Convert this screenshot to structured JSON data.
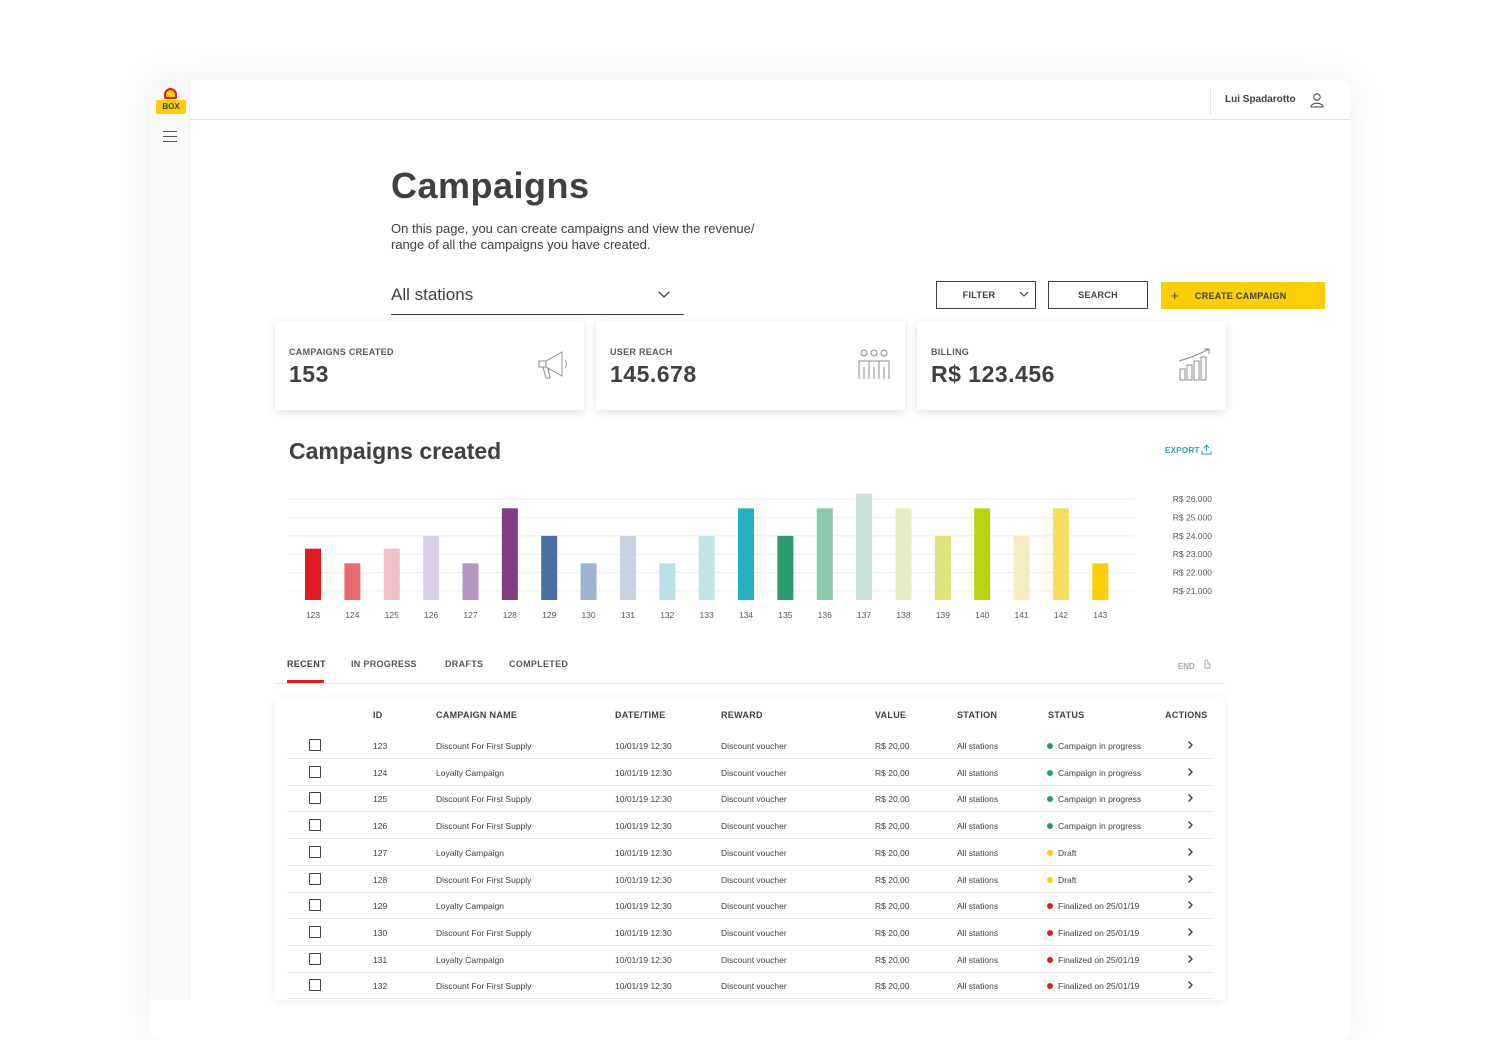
{
  "app": {
    "logo_text": "BOX"
  },
  "header": {
    "user_name": "Lui Spadarotto"
  },
  "page": {
    "title": "Campaigns",
    "description": "On this page, you can create campaigns and view the revenue/ range of all the campaigns you have created."
  },
  "controls": {
    "station_select": "All stations",
    "filter_label": "FILTER",
    "search_label": "SEARCH",
    "create_label": "CREATE CAMPAIGN",
    "create_plus": "+"
  },
  "cards": [
    {
      "title": "CAMPAIGNS CREATED",
      "value": "153",
      "icon": "megaphone-icon"
    },
    {
      "title": "USER REACH",
      "value": "145.678",
      "icon": "users-icon"
    },
    {
      "title": "BILLING",
      "value": "R$ 123.456",
      "icon": "growth-chart-icon"
    }
  ],
  "chart_section": {
    "title": "Campaigns created",
    "export_label": "EXPORT"
  },
  "chart_data": {
    "type": "bar",
    "categories": [
      "123",
      "124",
      "125",
      "126",
      "127",
      "128",
      "129",
      "130",
      "131",
      "132",
      "133",
      "134",
      "135",
      "136",
      "137",
      "138",
      "139",
      "140",
      "141",
      "142",
      "143"
    ],
    "values": [
      23300,
      22500,
      23300,
      24000,
      22500,
      25500,
      24000,
      22500,
      24000,
      22500,
      24000,
      25500,
      24000,
      25500,
      26300,
      25500,
      24000,
      25500,
      24000,
      25500,
      22500
    ],
    "colors": [
      "#dd1d21",
      "#e66a71",
      "#f0c1c6",
      "#ddd0e6",
      "#b795c4",
      "#7f3e7d",
      "#4a6fa2",
      "#9fb3d1",
      "#c8d3e0",
      "#b9e1e6",
      "#c2e4e8",
      "#27b0c0",
      "#2b9b6e",
      "#8cc9a9",
      "#c8e2d6",
      "#e8ecc5",
      "#dde27b",
      "#bcd10f",
      "#f5ebc3",
      "#f3de5e",
      "#fbce07"
    ],
    "ylim": [
      20500,
      26500
    ],
    "y_ticks": [
      "R$ 26.000",
      "R$ 25.000",
      "R$ 24.000",
      "R$ 23.000",
      "R$ 22.000",
      "R$ 21.000"
    ],
    "y_tick_values": [
      26000,
      25000,
      24000,
      23000,
      22000,
      21000
    ],
    "grid": true
  },
  "tabs": [
    "RECENT",
    "IN PROGRESS",
    "DRAFTS",
    "COMPLETED"
  ],
  "end_label": "END",
  "table": {
    "headers": [
      "ID",
      "CAMPAIGN NAME",
      "DATE/TIME",
      "REWARD",
      "VALUE",
      "STATION",
      "STATUS",
      "ACTIONS"
    ],
    "rows": [
      {
        "id": "123",
        "name": "Discount For First Supply",
        "date": "10/01/19 12:30",
        "reward": "Discount voucher",
        "value": "R$ 20,00",
        "station": "All stations",
        "status": "Campaign in progress",
        "status_color": "#2b9b6e"
      },
      {
        "id": "124",
        "name": "Loyalty Campaign",
        "date": "10/01/19 12:30",
        "reward": "Discount voucher",
        "value": "R$ 20,00",
        "station": "All stations",
        "status": "Campaign in progress",
        "status_color": "#2b9b6e"
      },
      {
        "id": "125",
        "name": "Discount For First Supply",
        "date": "10/01/19 12:30",
        "reward": "Discount voucher",
        "value": "R$ 20,00",
        "station": "All stations",
        "status": "Campaign in progress",
        "status_color": "#2b9b6e"
      },
      {
        "id": "126",
        "name": "Discount For First Supply",
        "date": "10/01/19 12:30",
        "reward": "Discount voucher",
        "value": "R$ 20,00",
        "station": "All stations",
        "status": "Campaign in progress",
        "status_color": "#2b9b6e"
      },
      {
        "id": "127",
        "name": "Loyalty Campaign",
        "date": "10/01/19 12:30",
        "reward": "Discount voucher",
        "value": "R$ 20,00",
        "station": "All stations",
        "status": "Draft",
        "status_color": "#fbce07"
      },
      {
        "id": "128",
        "name": "Discount For First Supply",
        "date": "10/01/19 12:30",
        "reward": "Discount voucher",
        "value": "R$ 20,00",
        "station": "All stations",
        "status": "Draft",
        "status_color": "#fbce07"
      },
      {
        "id": "129",
        "name": "Loyalty Campaign",
        "date": "10/01/19 12:30",
        "reward": "Discount voucher",
        "value": "R$ 20,00",
        "station": "All stations",
        "status": "Finalized on 25/01/19",
        "status_color": "#dd1d21"
      },
      {
        "id": "130",
        "name": "Discount For First Supply",
        "date": "10/01/19 12:30",
        "reward": "Discount voucher",
        "value": "R$ 20,00",
        "station": "All stations",
        "status": "Finalized on 25/01/19",
        "status_color": "#dd1d21"
      },
      {
        "id": "131",
        "name": "Loyalty Campaign",
        "date": "10/01/19 12:30",
        "reward": "Discount voucher",
        "value": "R$ 20,00",
        "station": "All stations",
        "status": "Finalized on 25/01/19",
        "status_color": "#dd1d21"
      },
      {
        "id": "132",
        "name": "Discount For First Supply",
        "date": "10/01/19 12:30",
        "reward": "Discount voucher",
        "value": "R$ 20,00",
        "station": "All stations",
        "status": "Finalized on 25/01/19",
        "status_color": "#dd1d21"
      }
    ]
  }
}
